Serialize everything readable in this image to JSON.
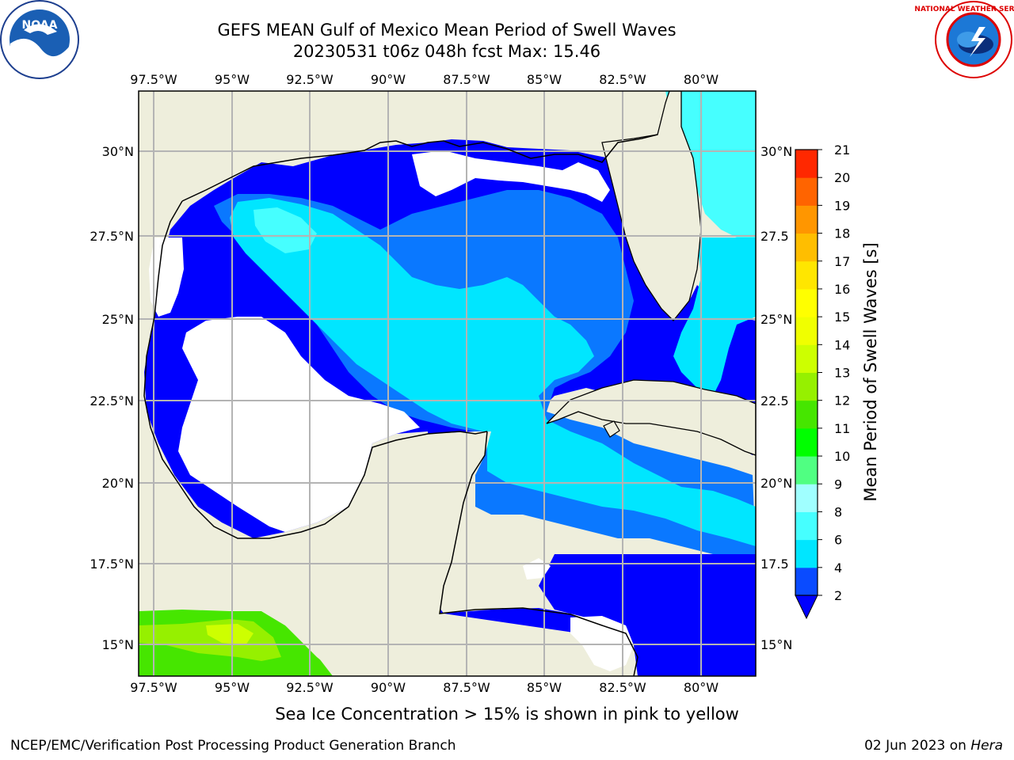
{
  "header": {
    "title_line1": "GEFS MEAN Gulf of Mexico Mean Period of Swell Waves",
    "title_line2": "20230531 t06z 048h fcst   Max: 15.46"
  },
  "logos": {
    "left": {
      "icon": "noaa-logo",
      "text": "NOAA"
    },
    "right": {
      "icon": "national-weather-service-logo",
      "text": "NATIONAL WEATHER SERVICE"
    }
  },
  "map": {
    "lon_labels": [
      "97.5°W",
      "95°W",
      "92.5°W",
      "90°W",
      "87.5°W",
      "85°W",
      "82.5°W",
      "80°W"
    ],
    "lat_labels_left": [
      "30°N",
      "27.5°N",
      "25°N",
      "22.5°N",
      "20°N",
      "17.5°N",
      "15°N"
    ],
    "lat_labels_right": [
      "30°N",
      "27.5",
      "25°N",
      "22.5",
      "20°N",
      "17.5",
      "15°N"
    ],
    "colors": {
      "land": "#eeeedc",
      "no_data": "#ffffff",
      "grid": "#b4b4b4",
      "coast": "#000000"
    }
  },
  "colorbar": {
    "label": "Mean Period of Swell Waves [s]",
    "ticks": [
      "2",
      "4",
      "6",
      "8",
      "9",
      "10",
      "11",
      "12",
      "13",
      "14",
      "15",
      "16",
      "17",
      "18",
      "19",
      "20",
      "21"
    ],
    "colors": [
      "#0a4bff",
      "#00e6ff",
      "#46ffff",
      "#a0ffff",
      "#50ff82",
      "#00ff00",
      "#46e600",
      "#96f000",
      "#cdff00",
      "#f0ff00",
      "#ffff00",
      "#ffe600",
      "#ffbe00",
      "#ff9600",
      "#ff6400",
      "#ff2800",
      "#ff0000"
    ],
    "extend_color": "#0000ff"
  },
  "footer": {
    "note": "Sea Ice Concentration > 15% is shown in pink to yellow",
    "left": "NCEP/EMC/Verification Post Processing Product Generation Branch",
    "right_date": "02 Jun 2023 on ",
    "right_host": "Hera"
  }
}
